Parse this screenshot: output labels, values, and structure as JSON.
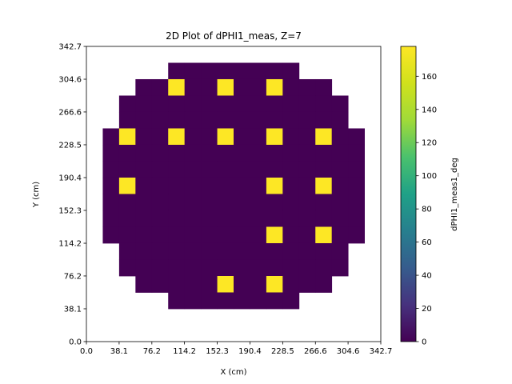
{
  "chart_data": {
    "type": "heatmap",
    "title": "2D Plot of dPHI1_meas, Z=7",
    "xlabel": "X (cm)",
    "ylabel": "Y (cm)",
    "colorbar_label": "dPHI1_meas1_deg",
    "colormap": "viridis",
    "xlim": [
      0.0,
      342.7
    ],
    "ylim": [
      0.0,
      342.7
    ],
    "clim": [
      0,
      178
    ],
    "x_ticks": [
      "0.0",
      "38.1",
      "76.2",
      "114.2",
      "152.3",
      "190.4",
      "228.5",
      "266.6",
      "304.6",
      "342.7"
    ],
    "y_ticks": [
      "0.0",
      "38.1",
      "76.2",
      "114.2",
      "152.3",
      "190.4",
      "228.5",
      "266.6",
      "304.6",
      "342.7"
    ],
    "colorbar_ticks": [
      "0",
      "20",
      "40",
      "60",
      "80",
      "100",
      "120",
      "140",
      "160"
    ],
    "colorbar_tick_values": [
      0,
      20,
      40,
      60,
      80,
      100,
      120,
      140,
      160
    ],
    "cell_size": 19.04,
    "x_centers": [
      9.52,
      28.56,
      47.6,
      66.64,
      85.68,
      104.72,
      123.76,
      142.8,
      161.84,
      180.88,
      199.92,
      218.96,
      238.0,
      257.04,
      276.08,
      295.12,
      314.16,
      333.2
    ],
    "y_centers": [
      333.2,
      314.16,
      295.12,
      276.08,
      257.04,
      238.0,
      218.96,
      199.92,
      180.88,
      161.84,
      142.8,
      123.76,
      104.72,
      85.68,
      66.64,
      47.6,
      28.56,
      9.52
    ],
    "values": [
      [
        null,
        null,
        null,
        null,
        null,
        null,
        null,
        null,
        null,
        null,
        null,
        null,
        null,
        null,
        null,
        null,
        null,
        null
      ],
      [
        null,
        null,
        null,
        null,
        null,
        0,
        0,
        0,
        0,
        0,
        0,
        0,
        0,
        null,
        null,
        null,
        null,
        null
      ],
      [
        null,
        null,
        null,
        0,
        0,
        178,
        0,
        0,
        178,
        0,
        0,
        178,
        0,
        0,
        0,
        null,
        null,
        null
      ],
      [
        null,
        null,
        0,
        0,
        0,
        0,
        0,
        0,
        0,
        0,
        0,
        0,
        0,
        0,
        0,
        0,
        null,
        null
      ],
      [
        null,
        null,
        0,
        0,
        0,
        0,
        0,
        0,
        0,
        0,
        0,
        0,
        0,
        0,
        0,
        0,
        null,
        null
      ],
      [
        null,
        0,
        178,
        0,
        0,
        178,
        0,
        0,
        178,
        0,
        0,
        178,
        0,
        0,
        178,
        0,
        0,
        null
      ],
      [
        null,
        0,
        0,
        0,
        0,
        0,
        0,
        0,
        0,
        0,
        0,
        0,
        0,
        0,
        0,
        0,
        0,
        null
      ],
      [
        null,
        0,
        0,
        0,
        0,
        0,
        0,
        0,
        0,
        0,
        0,
        0,
        0,
        0,
        0,
        0,
        0,
        null
      ],
      [
        null,
        0,
        178,
        0,
        0,
        0,
        0,
        0,
        0,
        0,
        0,
        178,
        0,
        0,
        178,
        0,
        0,
        null
      ],
      [
        null,
        0,
        0,
        0,
        0,
        0,
        0,
        0,
        0,
        0,
        0,
        0,
        0,
        0,
        0,
        0,
        0,
        null
      ],
      [
        null,
        0,
        0,
        0,
        0,
        0,
        0,
        0,
        0,
        0,
        0,
        0,
        0,
        0,
        0,
        0,
        0,
        null
      ],
      [
        null,
        0,
        0,
        0,
        0,
        0,
        0,
        0,
        0,
        0,
        0,
        178,
        0,
        0,
        178,
        0,
        0,
        null
      ],
      [
        null,
        null,
        0,
        0,
        0,
        0,
        0,
        0,
        0,
        0,
        0,
        0,
        0,
        0,
        0,
        0,
        null,
        null
      ],
      [
        null,
        null,
        0,
        0,
        0,
        0,
        0,
        0,
        0,
        0,
        0,
        0,
        0,
        0,
        0,
        0,
        null,
        null
      ],
      [
        null,
        null,
        null,
        0,
        0,
        0,
        0,
        0,
        178,
        0,
        0,
        178,
        0,
        0,
        0,
        null,
        null,
        null
      ],
      [
        null,
        null,
        null,
        null,
        null,
        0,
        0,
        0,
        0,
        0,
        0,
        0,
        0,
        null,
        null,
        null,
        null,
        null
      ],
      [
        null,
        null,
        null,
        null,
        null,
        null,
        null,
        null,
        null,
        null,
        null,
        null,
        null,
        null,
        null,
        null,
        null,
        null
      ],
      [
        null,
        null,
        null,
        null,
        null,
        null,
        null,
        null,
        null,
        null,
        null,
        null,
        null,
        null,
        null,
        null,
        null,
        null
      ]
    ],
    "colors": {
      "low": "#440154",
      "high": "#fde725"
    },
    "grid": false,
    "legend": "colorbar-right"
  }
}
